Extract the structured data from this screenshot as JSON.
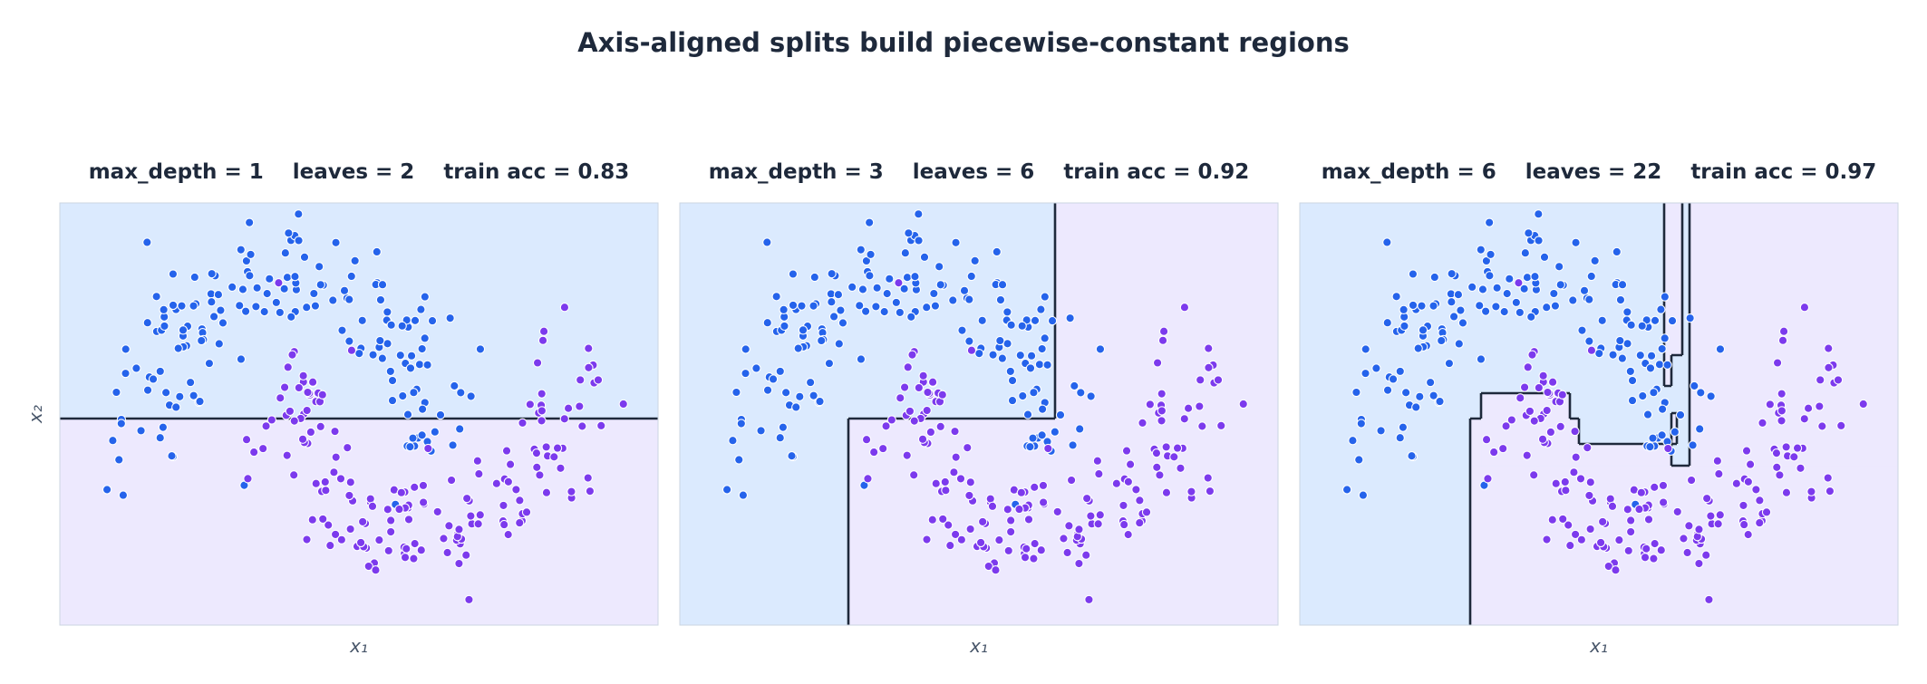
{
  "figure": {
    "title": "Axis-aligned splits build piecewise-constant regions"
  },
  "colors": {
    "class_a_region": "#dbeafe",
    "class_b_region": "#ede9fe",
    "class_a_point": "#2563eb",
    "class_b_point": "#7c3aed",
    "boundary": "#1e293b",
    "point_edge": "#ffffff"
  },
  "chart_data": [
    {
      "type": "scatter",
      "title_parts": [
        "max_depth = 1",
        "leaves = 2",
        "train acc = 0.83"
      ],
      "xlabel": "x₁",
      "ylabel": "x₂",
      "xlim": [
        -1.6,
        2.55
      ],
      "ylim": [
        -1.05,
        1.45
      ],
      "grid": false,
      "region_order": [
        "A",
        "B"
      ],
      "regions": [
        {
          "class": "A",
          "x": [
            -1.6,
            2.55
          ],
          "y": [
            0.17,
            1.45
          ]
        },
        {
          "class": "B",
          "x": [
            -1.6,
            2.55
          ],
          "y": [
            -1.05,
            0.17
          ]
        }
      ]
    },
    {
      "type": "scatter",
      "title_parts": [
        "max_depth = 3",
        "leaves = 6",
        "train acc = 0.92"
      ],
      "xlabel": "x₁",
      "xlim": [
        -1.6,
        2.55
      ],
      "ylim": [
        -1.05,
        1.45
      ],
      "grid": false,
      "regions": [
        {
          "class": "A",
          "x": [
            -1.6,
            1.0
          ],
          "y": [
            -1.05,
            1.45
          ]
        },
        {
          "class": "B",
          "x": [
            1.0,
            2.55
          ],
          "y": [
            -1.05,
            1.45
          ]
        },
        {
          "class": "B",
          "x": [
            -0.43,
            1.0
          ],
          "y": [
            -1.05,
            0.17
          ]
        }
      ]
    },
    {
      "type": "scatter",
      "title_parts": [
        "max_depth = 6",
        "leaves = 22",
        "train acc = 0.97"
      ],
      "xlabel": "x₁",
      "xlim": [
        -1.6,
        2.55
      ],
      "ylim": [
        -1.05,
        1.45
      ],
      "grid": false,
      "regions": [
        {
          "class": "A",
          "x": [
            -1.6,
            1.1
          ],
          "y": [
            -1.05,
            1.45
          ]
        },
        {
          "class": "B",
          "x": [
            1.1,
            2.55
          ],
          "y": [
            -1.05,
            1.45
          ]
        },
        {
          "class": "B",
          "x": [
            -0.42,
            2.55
          ],
          "y": [
            -1.05,
            -0.11
          ]
        },
        {
          "class": "B",
          "x": [
            -0.42,
            -0.34
          ],
          "y": [
            -0.11,
            0.17
          ]
        },
        {
          "class": "B",
          "x": [
            -0.34,
            0.27
          ],
          "y": [
            -0.11,
            0.32
          ]
        },
        {
          "class": "B",
          "x": [
            0.27,
            0.34
          ],
          "y": [
            -0.11,
            0.17
          ]
        },
        {
          "class": "B",
          "x": [
            0.34,
            0.98
          ],
          "y": [
            -0.11,
            0.02
          ]
        },
        {
          "class": "B",
          "x": [
            0.98,
            1.02
          ],
          "y": [
            0.02,
            0.2
          ]
        },
        {
          "class": "B",
          "x": [
            0.93,
            0.98
          ],
          "y": [
            0.37,
            0.55
          ]
        },
        {
          "class": "B",
          "x": [
            0.93,
            1.0
          ],
          "y": [
            0.55,
            1.45
          ]
        },
        {
          "class": "B",
          "x": [
            1.0,
            1.05
          ],
          "y": [
            0.55,
            1.45
          ]
        },
        {
          "class": "B",
          "x": [
            0.04,
            0.06
          ],
          "y": [
            -1.05,
            -0.11
          ]
        }
      ]
    }
  ]
}
